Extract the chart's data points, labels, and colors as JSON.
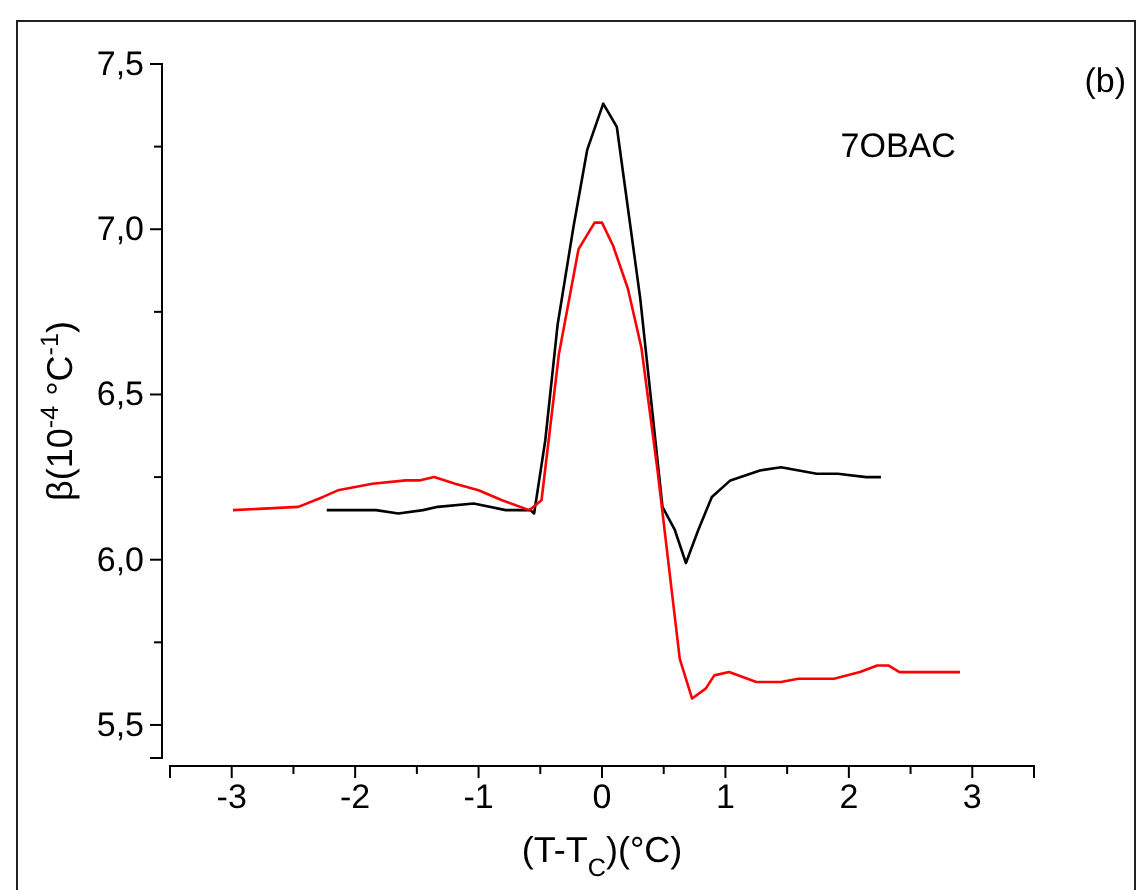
{
  "chart_data": {
    "type": "line",
    "xlabel": "(T-T$_{C}$)(°C)",
    "ylabel": "β(10$^{-4}$ °C$^{-1}$)",
    "annotations": [
      "7OBAC",
      "(b)"
    ],
    "xlim": [
      -3.5,
      3.5
    ],
    "ylim": [
      5.4,
      7.5
    ],
    "xticks": [
      {
        "value": -3.5,
        "label": null
      },
      -3,
      {
        "value": -2.5,
        "label": null
      },
      -2,
      {
        "value": -1.5,
        "label": null
      },
      -1,
      {
        "value": -0.5,
        "label": null
      },
      0,
      {
        "value": 0.5,
        "label": null
      },
      1,
      {
        "value": 1.5,
        "label": null
      },
      2,
      {
        "value": 2.5,
        "label": null
      },
      3,
      {
        "value": 3.5,
        "label": null
      }
    ],
    "yticks": [
      {
        "value": 5.5,
        "label": "5,5"
      },
      {
        "value": 5.75,
        "label": null
      },
      {
        "value": 6.0,
        "label": "6,0"
      },
      {
        "value": 6.25,
        "label": null
      },
      {
        "value": 6.5,
        "label": "6,5"
      },
      {
        "value": 6.75,
        "label": null
      },
      {
        "value": 7.0,
        "label": "7,0"
      },
      {
        "value": 7.25,
        "label": null
      },
      {
        "value": 7.5,
        "label": "7,5"
      }
    ],
    "line_style": "solid",
    "series": [
      {
        "color": "#000000",
        "x": [
          -2.23,
          -1.83,
          -1.65,
          -1.45,
          -1.33,
          -1.04,
          -0.78,
          -0.58,
          -0.55,
          -0.46,
          -0.36,
          -0.23,
          -0.12,
          0.01,
          0.12,
          0.31,
          0.49,
          0.59,
          0.68,
          0.78,
          0.89,
          1.04,
          1.28,
          1.45,
          1.74,
          1.91,
          2.14,
          2.26
        ],
        "values": [
          6.15,
          6.15,
          6.14,
          6.15,
          6.16,
          6.17,
          6.15,
          6.15,
          6.14,
          6.36,
          6.71,
          7.01,
          7.24,
          7.38,
          7.31,
          6.79,
          6.16,
          6.09,
          5.99,
          6.09,
          6.19,
          6.24,
          6.27,
          6.28,
          6.26,
          6.26,
          6.25,
          6.25
        ]
      },
      {
        "color": "#ff0000",
        "x": [
          -2.99,
          -2.46,
          -2.26,
          -2.14,
          -1.86,
          -1.59,
          -1.48,
          -1.36,
          -1.19,
          -1.0,
          -0.81,
          -0.59,
          -0.49,
          -0.35,
          -0.19,
          -0.06,
          0.0,
          0.09,
          0.21,
          0.32,
          0.45,
          0.63,
          0.73,
          0.84,
          0.91,
          1.03,
          1.25,
          1.45,
          1.59,
          1.88,
          2.09,
          2.23,
          2.32,
          2.41,
          2.9
        ],
        "values": [
          6.15,
          6.16,
          6.19,
          6.21,
          6.23,
          6.24,
          6.24,
          6.25,
          6.23,
          6.21,
          6.18,
          6.15,
          6.18,
          6.62,
          6.94,
          7.02,
          7.02,
          6.95,
          6.82,
          6.64,
          6.27,
          5.7,
          5.58,
          5.61,
          5.65,
          5.66,
          5.63,
          5.63,
          5.64,
          5.64,
          5.66,
          5.68,
          5.68,
          5.66,
          5.66
        ]
      }
    ]
  }
}
